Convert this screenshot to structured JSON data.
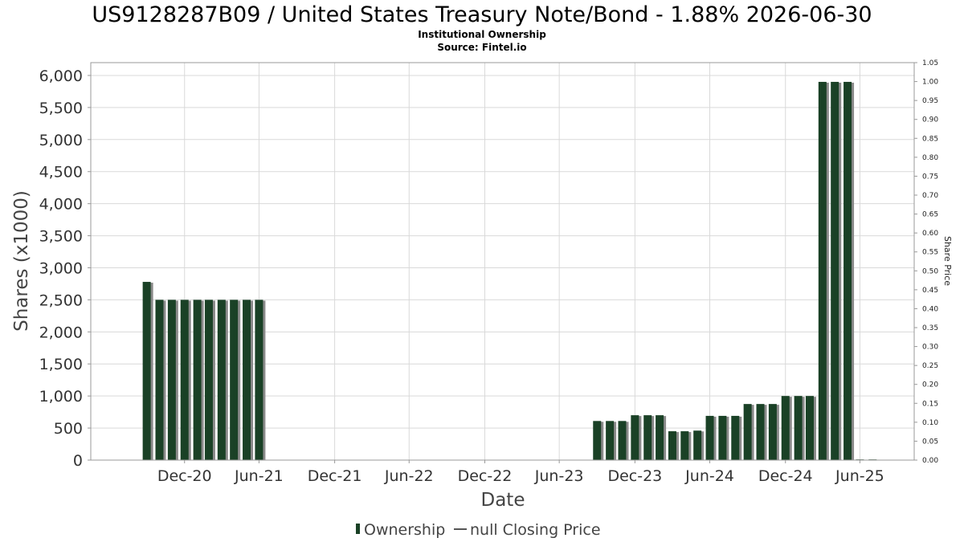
{
  "chart_data": {
    "type": "bar",
    "title": "US9128287B09 / United States Treasury Note/Bond - 1.88% 2026-06-30",
    "subtitles": [
      "Institutional Ownership",
      "Source: Fintel.io"
    ],
    "xlabel": "Date",
    "ylabel": "Shares (x1000)",
    "ylabel_right": "Share Price",
    "ylim": [
      0,
      6200
    ],
    "ylim_right": [
      0,
      1.05
    ],
    "y_ticks": [
      "0",
      "500",
      "1,000",
      "1,500",
      "2,000",
      "2,500",
      "3,000",
      "3,500",
      "4,000",
      "4,500",
      "5,000",
      "5,500",
      "6,000"
    ],
    "y_right_ticks": [
      "0.00",
      "0.05",
      "0.10",
      "0.15",
      "0.20",
      "0.25",
      "0.30",
      "0.35",
      "0.40",
      "0.45",
      "0.50",
      "0.55",
      "0.60",
      "0.65",
      "0.70",
      "0.75",
      "0.80",
      "0.85",
      "0.90",
      "0.95",
      "1.00",
      "1.05"
    ],
    "x_tick_labels": [
      "Dec-20",
      "Jun-21",
      "Dec-21",
      "Jun-22",
      "Dec-22",
      "Jun-23",
      "Dec-23",
      "Jun-24",
      "Dec-24",
      "Jun-25"
    ],
    "grid": true,
    "legend_position": "bottom",
    "series": [
      {
        "name": "Ownership",
        "color": "#1a4126",
        "points": [
          {
            "x": "2020-09-30",
            "y": 2780
          },
          {
            "x": "2020-10-31",
            "y": 2500
          },
          {
            "x": "2020-11-30",
            "y": 2500
          },
          {
            "x": "2020-12-31",
            "y": 2500
          },
          {
            "x": "2021-01-31",
            "y": 2500
          },
          {
            "x": "2021-02-28",
            "y": 2500
          },
          {
            "x": "2021-03-31",
            "y": 2500
          },
          {
            "x": "2021-04-30",
            "y": 2500
          },
          {
            "x": "2021-05-31",
            "y": 2500
          },
          {
            "x": "2021-06-30",
            "y": 2500
          },
          {
            "x": "2023-09-30",
            "y": 610
          },
          {
            "x": "2023-10-31",
            "y": 610
          },
          {
            "x": "2023-11-30",
            "y": 610
          },
          {
            "x": "2023-12-31",
            "y": 700
          },
          {
            "x": "2024-01-31",
            "y": 700
          },
          {
            "x": "2024-02-29",
            "y": 700
          },
          {
            "x": "2024-03-31",
            "y": 450
          },
          {
            "x": "2024-04-30",
            "y": 450
          },
          {
            "x": "2024-05-31",
            "y": 460
          },
          {
            "x": "2024-06-30",
            "y": 690
          },
          {
            "x": "2024-07-31",
            "y": 690
          },
          {
            "x": "2024-08-31",
            "y": 690
          },
          {
            "x": "2024-09-30",
            "y": 875
          },
          {
            "x": "2024-10-31",
            "y": 875
          },
          {
            "x": "2024-11-30",
            "y": 875
          },
          {
            "x": "2024-12-31",
            "y": 1000
          },
          {
            "x": "2025-01-31",
            "y": 1000
          },
          {
            "x": "2025-02-28",
            "y": 1000
          },
          {
            "x": "2025-03-31",
            "y": 5900
          },
          {
            "x": "2025-04-30",
            "y": 5900
          },
          {
            "x": "2025-05-31",
            "y": 5900
          },
          {
            "x": "2025-06-30",
            "y": 10
          },
          {
            "x": "2025-07-31",
            "y": 10
          }
        ]
      },
      {
        "name": "null Closing Price",
        "color": "#555555",
        "points": []
      }
    ]
  },
  "legend": {
    "items": [
      {
        "label": "Ownership",
        "color": "#1a4126"
      },
      {
        "label": "null Closing Price",
        "color": "#555555"
      }
    ]
  }
}
